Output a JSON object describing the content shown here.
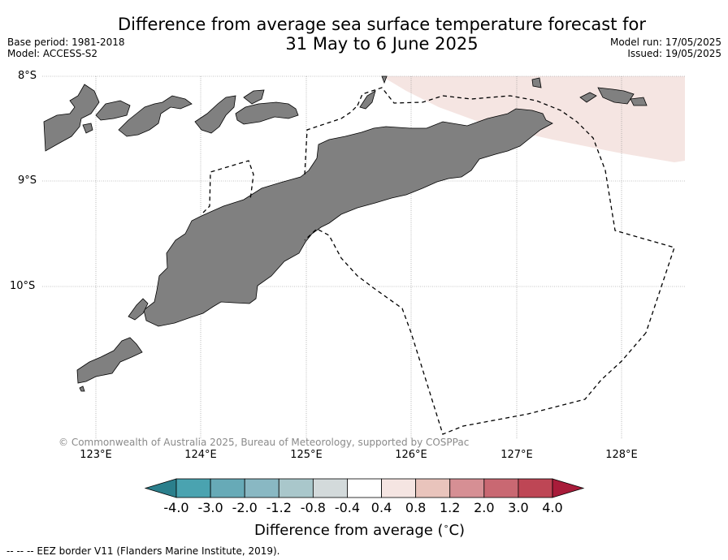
{
  "title_line1": "Difference from average sea surface temperature forecast for",
  "title_line2": "31 May to 6 June 2025",
  "base_period": "Base period: 1981-2018",
  "model": "Model: ACCESS-S2",
  "model_run": "Model run: 17/05/2025",
  "issued": "Issued: 19/05/2025",
  "lat_labels": [
    "8°S",
    "9°S",
    "10°S"
  ],
  "lon_labels": [
    "123°E",
    "124°E",
    "125°E",
    "126°E",
    "127°E",
    "128°E"
  ],
  "copyright": "© Commonwealth of Australia 2025, Bureau of Meteorology, supported by COSPPac",
  "colorbar": {
    "labels": [
      "-4.0",
      "-3.0",
      "-2.0",
      "-1.2",
      "-0.8",
      "-0.4",
      "0.4",
      "0.8",
      "1.2",
      "2.0",
      "3.0",
      "4.0"
    ],
    "colors": [
      "#2b7f8c",
      "#4aa3b0",
      "#67aab7",
      "#89b8c3",
      "#a9c7cb",
      "#d3dadb",
      "#ffffff",
      "#f5e5e2",
      "#e9c4bc",
      "#d68f94",
      "#c96872",
      "#be4655",
      "#a81c3a"
    ],
    "title": "Difference from average (",
    "title_unit": "∘",
    "title_end": "C)"
  },
  "map": {
    "land_color": "#808080",
    "anomaly_patch_color": "#f5e5e2",
    "anomaly_patch_range": "0.4 to 0.8"
  },
  "legend_footer": "--  --  -- EEZ border V11 (Flanders Marine Institute, 2019)."
}
